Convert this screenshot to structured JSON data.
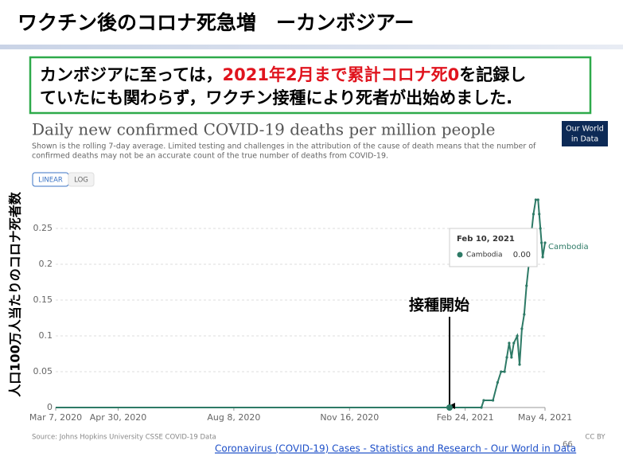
{
  "slide_title": "ワクチン後のコロナ死急増　ーカンボジアー",
  "message": {
    "line1_start": "カンボジアに至っては，",
    "line1_highlight": "2021年2月まで累計コロナ死0",
    "line1_end": "を記録し",
    "line2": "ていたにも関わらず，ワクチン接種により死者が出始めました."
  },
  "chart_data": {
    "type": "line",
    "title": "Daily new confirmed COVID-19 deaths per million people",
    "subtitle": [
      "Shown is the rolling 7-day average. Limited testing and challenges in the attribution of the cause of death means that the number of",
      "confirmed deaths may not be an accurate count of the true number of deaths from COVID-19."
    ],
    "logo": [
      "Our World",
      "in Data"
    ],
    "buttons": [
      "LINEAR",
      "LOG"
    ],
    "y_label": "人口100万人当たりのコロナ死者数",
    "x": [
      "2020-03-07",
      "2021-03-10",
      "2021-03-12",
      "2021-03-20",
      "2021-03-24",
      "2021-03-27",
      "2021-03-30",
      "2021-04-01",
      "2021-04-03",
      "2021-04-05",
      "2021-04-07",
      "2021-04-10",
      "2021-04-12",
      "2021-04-14",
      "2021-04-16",
      "2021-04-18",
      "2021-04-20",
      "2021-04-22",
      "2021-04-24",
      "2021-04-26",
      "2021-04-28",
      "2021-04-29",
      "2021-04-30",
      "2021-05-01",
      "2021-05-02",
      "2021-05-04"
    ],
    "series": [
      {
        "name": "Cambodia",
        "color": "#2d7a66",
        "values": [
          0,
          0,
          0.01,
          0.01,
          0.035,
          0.05,
          0.05,
          0.07,
          0.09,
          0.07,
          0.09,
          0.1,
          0.06,
          0.11,
          0.13,
          0.17,
          0.2,
          0.24,
          0.27,
          0.29,
          0.29,
          0.27,
          0.25,
          0.23,
          0.21,
          0.23
        ]
      }
    ],
    "xlim": [
      "2020-03-07",
      "2021-05-04"
    ],
    "xticks": [
      {
        "value": "2020-03-07",
        "label": "Mar 7, 2020"
      },
      {
        "value": "2020-04-30",
        "label": "Apr 30, 2020"
      },
      {
        "value": "2020-08-08",
        "label": "Aug 8, 2020"
      },
      {
        "value": "2020-11-16",
        "label": "Nov 16, 2020"
      },
      {
        "value": "2021-02-24",
        "label": "Feb 24, 2021"
      },
      {
        "value": "2021-05-04",
        "label": "May 4, 2021"
      }
    ],
    "ylim": [
      0,
      0.3
    ],
    "yticks": [
      0,
      0.05,
      0.1,
      0.15,
      0.2,
      0.25
    ],
    "grid": true,
    "annotation": "接種開始",
    "tooltip": {
      "date": "Feb 10, 2021",
      "value_label": "0.00"
    },
    "source": "Source: Johns Hopkins University CSSE COVID-19 Data",
    "license": "CC BY"
  },
  "footer": {
    "link": "Coronavirus (COVID-19) Cases - Statistics and Research - Our World in Data",
    "page": "66"
  }
}
